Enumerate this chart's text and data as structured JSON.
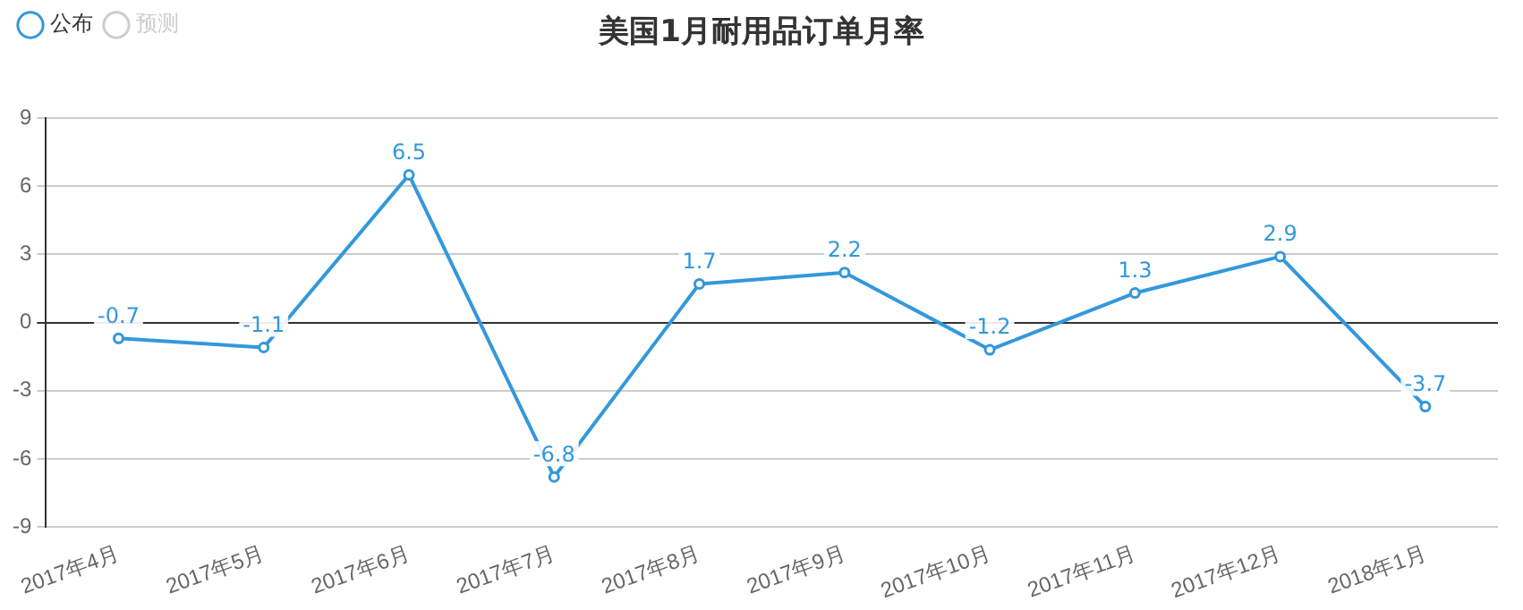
{
  "chart_data": {
    "type": "line",
    "title": "美国1月耐用品订单月率",
    "categories": [
      "2017年4月",
      "2017年5月",
      "2017年6月",
      "2017年7月",
      "2017年8月",
      "2017年9月",
      "2017年10月",
      "2017年11月",
      "2017年12月",
      "2018年1月"
    ],
    "series": [
      {
        "name": "公布",
        "color": "#3398db",
        "values": [
          -0.7,
          -1.1,
          6.5,
          -6.8,
          1.7,
          2.2,
          -1.2,
          1.3,
          2.9,
          -3.7
        ]
      },
      {
        "name": "预测",
        "color": "#cccccc",
        "values": [
          null,
          null,
          null,
          null,
          null,
          null,
          null,
          null,
          null,
          null
        ]
      }
    ],
    "ylim": [
      -9,
      9
    ],
    "yticks": [
      -9,
      -6,
      -3,
      0,
      3,
      6,
      9
    ],
    "grid": "y",
    "legend": "top left",
    "marker": "circle",
    "line_style": "solid",
    "data_labels": true
  }
}
